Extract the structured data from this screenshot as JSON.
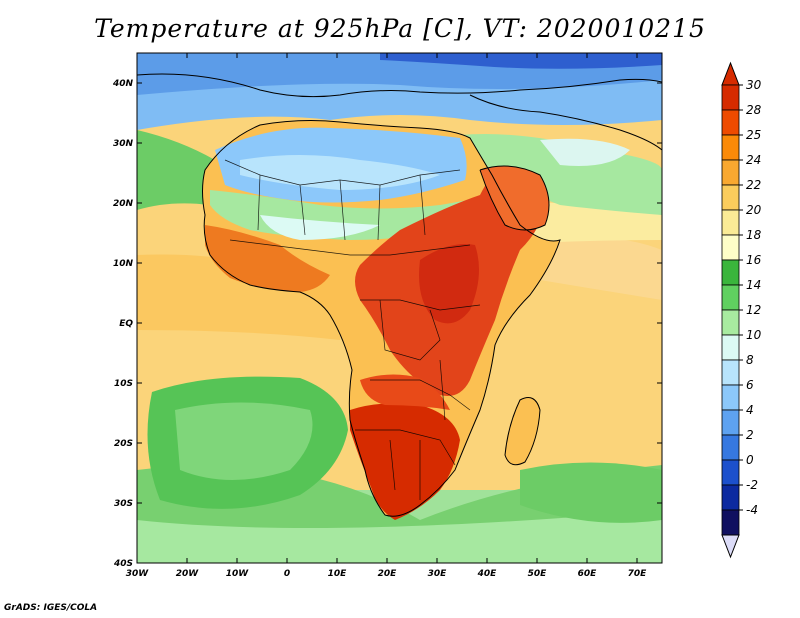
{
  "title": "Temperature at 925hPa [C], VT: 2020010215",
  "credit": "GrADS: IGES/COLA",
  "map": {
    "variable": "Temperature at 925hPa",
    "units": "C",
    "valid_time": "2020010215",
    "lon_range": [
      -30,
      75
    ],
    "lat_range": [
      -40,
      45
    ],
    "lon_ticks": [
      {
        "value": -30,
        "label": "30W"
      },
      {
        "value": -20,
        "label": "20W"
      },
      {
        "value": -10,
        "label": "10W"
      },
      {
        "value": 0,
        "label": "0"
      },
      {
        "value": 10,
        "label": "10E"
      },
      {
        "value": 20,
        "label": "20E"
      },
      {
        "value": 30,
        "label": "30E"
      },
      {
        "value": 40,
        "label": "40E"
      },
      {
        "value": 50,
        "label": "50E"
      },
      {
        "value": 60,
        "label": "60E"
      },
      {
        "value": 70,
        "label": "70E"
      }
    ],
    "lat_ticks": [
      {
        "value": 40,
        "label": "40N"
      },
      {
        "value": 30,
        "label": "30N"
      },
      {
        "value": 20,
        "label": "20N"
      },
      {
        "value": 10,
        "label": "10N"
      },
      {
        "value": 0,
        "label": "EQ"
      },
      {
        "value": -10,
        "label": "10S"
      },
      {
        "value": -20,
        "label": "20S"
      },
      {
        "value": -30,
        "label": "30S"
      },
      {
        "value": -40,
        "label": "40S"
      }
    ]
  },
  "colorbar": {
    "labels": [
      "30",
      "28",
      "25",
      "24",
      "22",
      "20",
      "18",
      "16",
      "14",
      "12",
      "10",
      "8",
      "6",
      "4",
      "2",
      "0",
      "-2",
      "-4"
    ],
    "colors": [
      "#d62b00",
      "#ee4b00",
      "#fb8a08",
      "#f9a830",
      "#fbcc5c",
      "#faeb96",
      "#fefec8",
      "#3ab53c",
      "#60d060",
      "#a8eba0",
      "#dcfaf4",
      "#b8e4fc",
      "#8cc8fa",
      "#5ea2f0",
      "#3678e0",
      "#1c50cc",
      "#0c2aa0",
      "#101060"
    ],
    "min_arrow_color": "#dcdcf8",
    "max_arrow_color": "#d62b00"
  }
}
